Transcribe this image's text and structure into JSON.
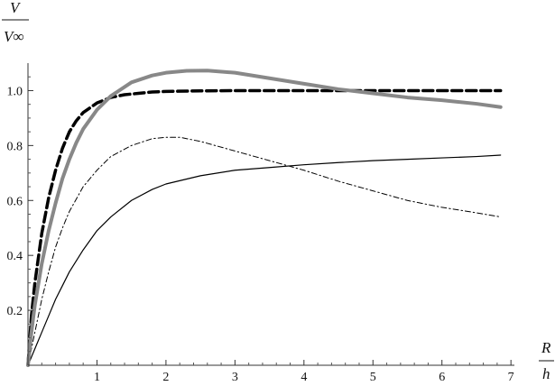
{
  "chart_data": {
    "type": "line",
    "xlabel": {
      "numerator": "R",
      "denominator": "h"
    },
    "ylabel": {
      "numerator": "V",
      "denominator": "V∞"
    },
    "xlim": [
      0,
      7.05
    ],
    "ylim": [
      0,
      1.1
    ],
    "x_ticks": [
      1,
      2,
      3,
      4,
      5,
      6,
      7
    ],
    "y_ticks": [
      0.2,
      0.4,
      0.6,
      0.8,
      1.0
    ],
    "x_tick_labels": [
      "1",
      "2",
      "3",
      "4",
      "5",
      "6",
      "7"
    ],
    "y_tick_labels": [
      "0.2",
      "0.4",
      "0.6",
      "0.8",
      "1.0"
    ],
    "grid": false,
    "series": [
      {
        "color": "#000000",
        "style": "solid-thin",
        "x": [
          0,
          0.1,
          0.2,
          0.3,
          0.4,
          0.5,
          0.6,
          0.8,
          1.0,
          1.2,
          1.5,
          1.8,
          2.0,
          2.5,
          3.0,
          3.5,
          4.0,
          4.5,
          5.0,
          5.5,
          6.0,
          6.5,
          6.85
        ],
        "y": [
          0,
          0.06,
          0.12,
          0.18,
          0.24,
          0.29,
          0.34,
          0.42,
          0.49,
          0.54,
          0.6,
          0.64,
          0.66,
          0.69,
          0.71,
          0.72,
          0.73,
          0.738,
          0.745,
          0.75,
          0.755,
          0.76,
          0.765
        ]
      },
      {
        "color": "#000000",
        "style": "dash-dot",
        "x": [
          0,
          0.1,
          0.2,
          0.3,
          0.4,
          0.5,
          0.6,
          0.8,
          1.0,
          1.2,
          1.5,
          1.8,
          2.0,
          2.2,
          2.5,
          3.0,
          3.5,
          4.0,
          4.5,
          5.0,
          5.5,
          6.0,
          6.5,
          6.85
        ],
        "y": [
          0,
          0.12,
          0.24,
          0.34,
          0.43,
          0.5,
          0.56,
          0.65,
          0.71,
          0.76,
          0.8,
          0.825,
          0.83,
          0.83,
          0.815,
          0.78,
          0.745,
          0.71,
          0.67,
          0.635,
          0.6,
          0.575,
          0.555,
          0.54
        ]
      },
      {
        "color": "#000000",
        "style": "dashed-thick",
        "x": [
          0,
          0.05,
          0.1,
          0.2,
          0.3,
          0.4,
          0.5,
          0.6,
          0.7,
          0.8,
          1.0,
          1.2,
          1.4,
          1.6,
          1.8,
          2.0,
          2.5,
          3.0,
          4.0,
          5.0,
          6.0,
          6.85
        ],
        "y": [
          0,
          0.18,
          0.3,
          0.48,
          0.61,
          0.71,
          0.79,
          0.85,
          0.89,
          0.92,
          0.955,
          0.975,
          0.985,
          0.99,
          0.995,
          0.997,
          0.999,
          1.0,
          1.0,
          1.0,
          1.0,
          1.0
        ]
      },
      {
        "color": "#888888",
        "style": "solid-thick",
        "x": [
          0,
          0.05,
          0.1,
          0.2,
          0.3,
          0.4,
          0.5,
          0.6,
          0.7,
          0.8,
          1.0,
          1.2,
          1.5,
          1.8,
          2.0,
          2.3,
          2.6,
          3.0,
          3.5,
          4.0,
          4.5,
          5.0,
          5.5,
          6.0,
          6.5,
          6.85
        ],
        "y": [
          0,
          0.12,
          0.22,
          0.37,
          0.49,
          0.59,
          0.68,
          0.75,
          0.81,
          0.86,
          0.93,
          0.98,
          1.03,
          1.055,
          1.065,
          1.072,
          1.073,
          1.065,
          1.045,
          1.025,
          1.005,
          0.99,
          0.975,
          0.965,
          0.952,
          0.94
        ]
      }
    ]
  }
}
